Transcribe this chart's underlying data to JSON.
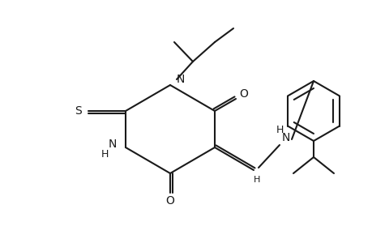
{
  "bg": "#ffffff",
  "lc": "#1a1a1a",
  "lw": 1.5,
  "fs": 9,
  "figsize": [
    4.6,
    3.0
  ],
  "dpi": 100,
  "xlim": [
    0,
    460
  ],
  "ylim": [
    0,
    300
  ]
}
